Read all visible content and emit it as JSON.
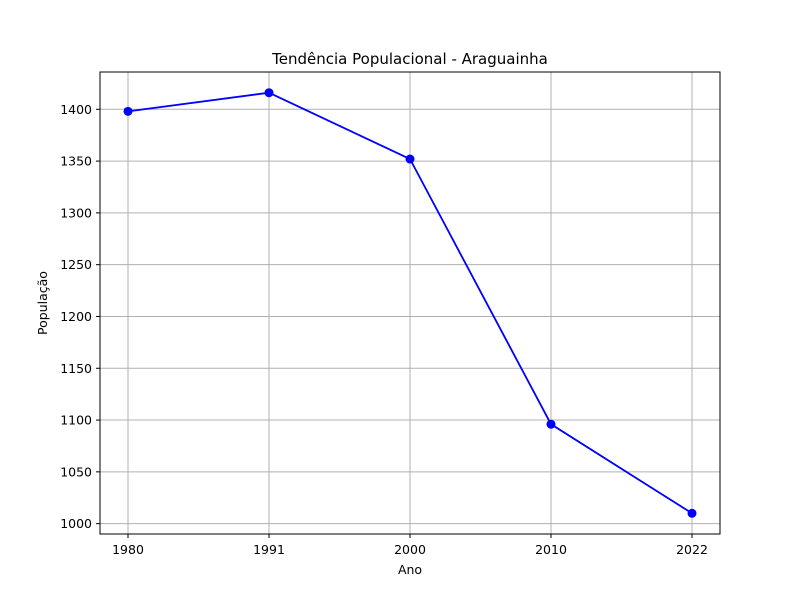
{
  "chart_data": {
    "type": "line",
    "title": "Tendência Populacional - Araguainha",
    "xlabel": "Ano",
    "ylabel": "População",
    "categories": [
      "1980",
      "1991",
      "2000",
      "2010",
      "2022"
    ],
    "series": [
      {
        "values": [
          1398,
          1416,
          1352,
          1096,
          1010
        ],
        "color": "#0000ff",
        "marker": "circle"
      }
    ],
    "ylim": [
      990,
      1436
    ],
    "yticks": [
      1000,
      1050,
      1100,
      1150,
      1200,
      1250,
      1300,
      1350,
      1400
    ],
    "ytick_labels": [
      "1000",
      "1050",
      "1100",
      "1150",
      "1200",
      "1250",
      "1300",
      "1350",
      "1400"
    ],
    "grid": true
  }
}
